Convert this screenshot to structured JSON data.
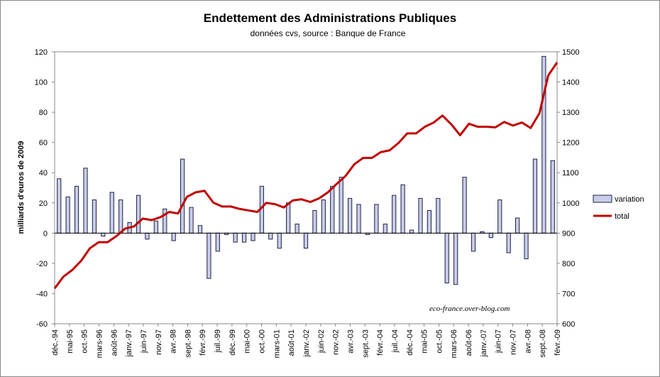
{
  "chart_data": {
    "type": "bar",
    "title": "Endettement des Administrations  Publiques",
    "subtitle": "données cvs, source : Banque de France",
    "ylabel": "milliards d'euros de 2009",
    "y2label": "",
    "ylim": [
      -60,
      120
    ],
    "y2lim": [
      600,
      1500
    ],
    "yticks": [
      "-60",
      "-40",
      "-20",
      "0",
      "20",
      "40",
      "60",
      "80",
      "100",
      "120"
    ],
    "y2ticks": [
      "600",
      "700",
      "800",
      "900",
      "1000",
      "1100",
      "1200",
      "1300",
      "1400",
      "1500"
    ],
    "grid": false,
    "legend_position": "right",
    "watermark": "eco-france.over-blog.com",
    "x_tick_labels": [
      "déc.-94",
      "mai-95",
      "oct.-95",
      "mars-96",
      "août-96",
      "janv.-97",
      "juin-97",
      "nov.-97",
      "avr.-98",
      "sept.-98",
      "févr.-99",
      "juil.-99",
      "déc.-99",
      "mai-00",
      "oct.-00",
      "mars-01",
      "août-01",
      "janv.-02",
      "juin-02",
      "nov.-02",
      "avr.-03",
      "sept.-03",
      "févr.-04",
      "juil.-04",
      "déc.-04",
      "mai-05",
      "oct.-05",
      "mars-06",
      "août-06",
      "janv.-07",
      "juin-07",
      "nov.-07",
      "avr.-08",
      "sept.-08",
      "févr.-09"
    ],
    "series": [
      {
        "name": "variation",
        "type": "bar",
        "axis": "left",
        "color": "#c8cde8",
        "edge": "#222244",
        "values": [
          36,
          24,
          31,
          43,
          22,
          -2,
          27,
          22,
          7,
          25,
          -4,
          8,
          16,
          -5,
          49,
          17,
          5,
          -30,
          -12,
          -1,
          -6,
          -6,
          -5,
          31,
          -4,
          -10,
          20,
          6,
          -10,
          15,
          22,
          31,
          37,
          23,
          19,
          -1,
          19,
          6,
          25,
          32,
          2,
          23,
          15,
          23,
          -33,
          -34,
          37,
          -12,
          1,
          -3,
          22,
          -13,
          10,
          -17,
          49,
          117,
          48
        ]
      },
      {
        "name": "total",
        "type": "line",
        "axis": "right",
        "color": "#c00000",
        "values": [
          717,
          756,
          778,
          808,
          850,
          870,
          870,
          890,
          915,
          922,
          948,
          943,
          953,
          970,
          965,
          1020,
          1035,
          1040,
          1001,
          988,
          988,
          980,
          975,
          970,
          1000,
          996,
          985,
          1008,
          1012,
          1003,
          1015,
          1035,
          1063,
          1089,
          1128,
          1149,
          1149,
          1168,
          1174,
          1198,
          1230,
          1230,
          1252,
          1266,
          1289,
          1260,
          1224,
          1262,
          1252,
          1252,
          1250,
          1268,
          1256,
          1266,
          1248,
          1297,
          1422,
          1465
        ]
      }
    ]
  }
}
